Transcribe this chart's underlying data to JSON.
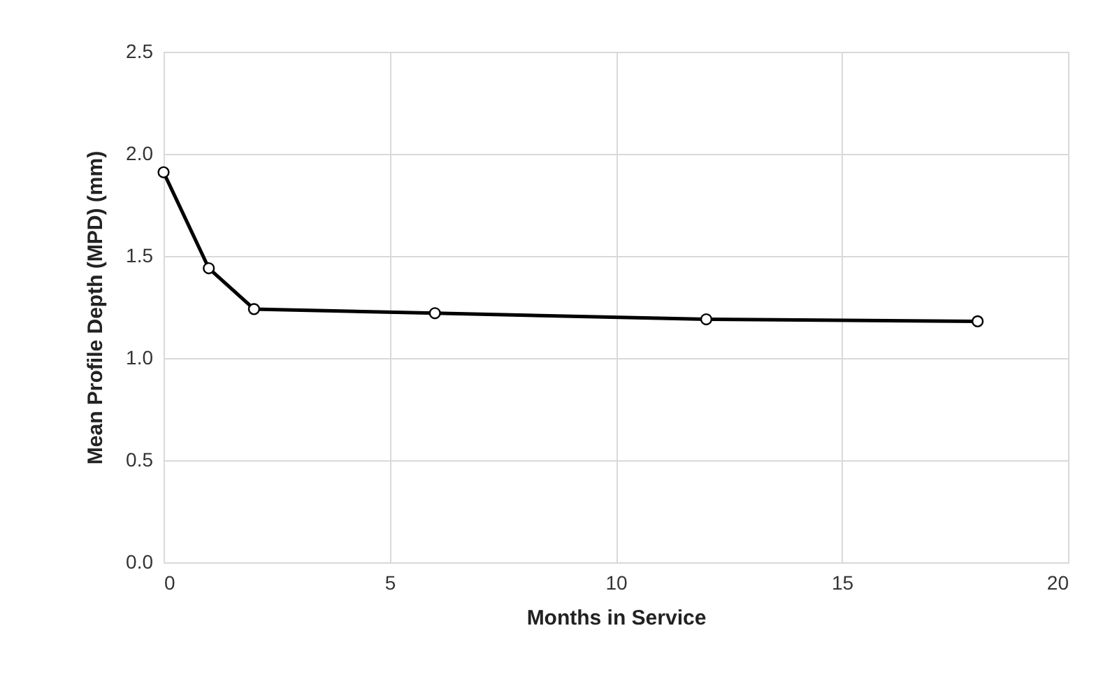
{
  "chart_data": {
    "type": "line",
    "xlabel": "Months in Service",
    "ylabel": "Mean Profile Depth (MPD) (mm)",
    "x": [
      0,
      1,
      2,
      6,
      12,
      18
    ],
    "series": [
      {
        "color": "#000000",
        "values": [
          1.91,
          1.44,
          1.24,
          1.22,
          1.19,
          1.18
        ]
      }
    ],
    "xlim": [
      0,
      20
    ],
    "xticks": [
      0,
      5,
      10,
      15,
      20
    ],
    "ylim": [
      0,
      2.5
    ],
    "yticks": [
      {
        "value": 0,
        "label": "0.0"
      },
      0.5,
      {
        "value": 1,
        "label": "1.0"
      },
      1.5,
      {
        "value": 2,
        "label": "2.0"
      },
      2.5
    ],
    "grid": true,
    "marker": "circle",
    "line_style": "solid"
  }
}
